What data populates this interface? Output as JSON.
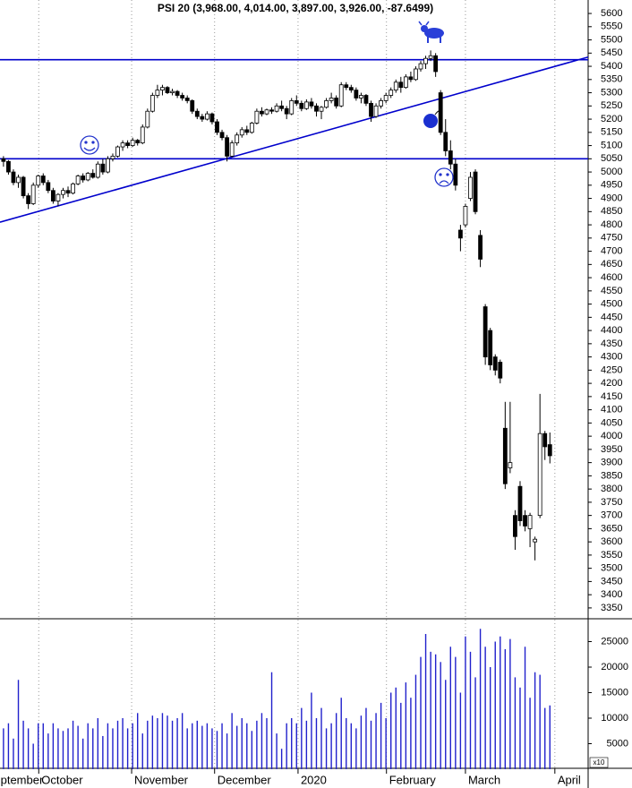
{
  "chart_data": {
    "type": "candlestick",
    "title": "PSI 20 (3,968.00, 4,014.00, 3,897.00, 3,926.00, -87.6499)",
    "open": [
      5050,
      5040,
      5000,
      4960,
      4980,
      4910,
      4880,
      4950,
      4985,
      4960,
      4930,
      4890,
      4915,
      4930,
      4920,
      4955,
      4985,
      4970,
      4995,
      4980,
      5030,
      5000,
      5050,
      5060,
      5095,
      5110,
      5100,
      5120,
      5110,
      5170,
      5230,
      5290,
      5310,
      5320,
      5300,
      5305,
      5290,
      5280,
      5270,
      5230,
      5210,
      5200,
      5220,
      5190,
      5150,
      5130,
      5060,
      5110,
      5140,
      5160,
      5150,
      5185,
      5230,
      5220,
      5235,
      5230,
      5250,
      5240,
      5220,
      5270,
      5260,
      5240,
      5265,
      5250,
      5230,
      5245,
      5270,
      5280,
      5250,
      5330,
      5320,
      5310,
      5280,
      5290,
      5260,
      5210,
      5250,
      5270,
      5290,
      5310,
      5340,
      5320,
      5360,
      5350,
      5390,
      5410,
      5430,
      5440,
      5300,
      5150,
      5080,
      5030,
      4780,
      4800,
      4900,
      5000,
      4760,
      4490,
      4400,
      4300,
      4280,
      4030,
      3880,
      3700,
      3810,
      3700,
      3650,
      3600,
      3700,
      4010,
      3968
    ],
    "high": [
      5060,
      5045,
      5010,
      4990,
      4985,
      4920,
      4960,
      4990,
      4995,
      4970,
      4940,
      4920,
      4940,
      4945,
      4960,
      4990,
      4995,
      5000,
      5010,
      5040,
      5050,
      5060,
      5070,
      5100,
      5120,
      5120,
      5130,
      5125,
      5180,
      5240,
      5300,
      5330,
      5330,
      5325,
      5315,
      5310,
      5300,
      5290,
      5275,
      5240,
      5220,
      5230,
      5225,
      5200,
      5160,
      5140,
      5120,
      5150,
      5170,
      5175,
      5190,
      5240,
      5245,
      5240,
      5245,
      5260,
      5270,
      5250,
      5280,
      5290,
      5270,
      5275,
      5280,
      5260,
      5250,
      5280,
      5300,
      5290,
      5340,
      5340,
      5330,
      5320,
      5300,
      5295,
      5270,
      5260,
      5280,
      5300,
      5320,
      5350,
      5360,
      5370,
      5380,
      5400,
      5420,
      5440,
      5460,
      5450,
      5310,
      5200,
      5120,
      5050,
      4800,
      4880,
      5000,
      5010,
      4780,
      4500,
      4410,
      4310,
      4290,
      4130,
      4130,
      3720,
      3830,
      3720,
      3710,
      3620,
      4160,
      4020,
      4014
    ],
    "low": [
      5020,
      4990,
      4950,
      4940,
      4900,
      4860,
      4875,
      4940,
      4950,
      4920,
      4880,
      4870,
      4900,
      4905,
      4915,
      4950,
      4960,
      4965,
      4975,
      4975,
      4990,
      4995,
      5040,
      5055,
      5080,
      5090,
      5095,
      5100,
      5105,
      5165,
      5225,
      5280,
      5290,
      5295,
      5290,
      5280,
      5270,
      5260,
      5220,
      5200,
      5190,
      5195,
      5180,
      5140,
      5120,
      5040,
      5055,
      5100,
      5130,
      5140,
      5145,
      5180,
      5210,
      5215,
      5220,
      5225,
      5230,
      5200,
      5215,
      5250,
      5230,
      5235,
      5240,
      5210,
      5200,
      5240,
      5260,
      5240,
      5245,
      5310,
      5300,
      5270,
      5260,
      5250,
      5190,
      5205,
      5240,
      5260,
      5280,
      5300,
      5300,
      5315,
      5340,
      5345,
      5380,
      5390,
      5420,
      5360,
      5140,
      5060,
      5010,
      4930,
      4700,
      4790,
      4890,
      4840,
      4640,
      4270,
      4250,
      4230,
      4200,
      3800,
      3860,
      3570,
      3660,
      3640,
      3580,
      3530,
      3690,
      3910,
      3897
    ],
    "close": [
      5040,
      5000,
      4960,
      4980,
      4910,
      4880,
      4950,
      4985,
      4960,
      4930,
      4890,
      4915,
      4930,
      4920,
      4955,
      4985,
      4970,
      4995,
      4980,
      5030,
      5000,
      5050,
      5060,
      5095,
      5110,
      5100,
      5120,
      5110,
      5170,
      5230,
      5290,
      5310,
      5320,
      5300,
      5305,
      5290,
      5280,
      5270,
      5230,
      5210,
      5200,
      5220,
      5190,
      5150,
      5130,
      5060,
      5110,
      5140,
      5160,
      5150,
      5185,
      5230,
      5220,
      5235,
      5230,
      5250,
      5240,
      5220,
      5270,
      5260,
      5240,
      5265,
      5250,
      5230,
      5245,
      5270,
      5280,
      5250,
      5330,
      5320,
      5310,
      5280,
      5290,
      5260,
      5210,
      5250,
      5270,
      5290,
      5310,
      5340,
      5320,
      5360,
      5350,
      5390,
      5410,
      5430,
      5440,
      5380,
      5150,
      5080,
      5030,
      4950,
      4750,
      4870,
      4980,
      4850,
      4670,
      4300,
      4270,
      4250,
      4220,
      3820,
      3900,
      3620,
      3680,
      3660,
      3700,
      3610,
      4010,
      3960,
      3926
    ],
    "up_color": "#ffffff",
    "down_color": "#000000",
    "xlim": [
      -0.7,
      117.7
    ],
    "xticks": [
      {
        "value": -4,
        "label": "September"
      },
      {
        "value": 7.1,
        "label": "October"
      },
      {
        "value": 25.8,
        "label": "November"
      },
      {
        "value": 42.5,
        "label": "December"
      },
      {
        "value": 59.3,
        "label": "2020"
      },
      {
        "value": 77.1,
        "label": "February"
      },
      {
        "value": 93,
        "label": "March"
      },
      {
        "value": 111,
        "label": "April"
      }
    ],
    "grid": true,
    "ylim": [
      3309,
      5651
    ],
    "yticks": [
      3350,
      3400,
      3450,
      3500,
      3550,
      3600,
      3650,
      3700,
      3750,
      3800,
      3850,
      3900,
      3950,
      4000,
      4050,
      4100,
      4150,
      4200,
      4250,
      4300,
      4350,
      4400,
      4450,
      4500,
      4550,
      4600,
      4650,
      4700,
      4750,
      4800,
      4850,
      4900,
      4950,
      5000,
      5050,
      5100,
      5150,
      5200,
      5250,
      5300,
      5350,
      5400,
      5450,
      5500,
      5550,
      5600
    ],
    "lines": [
      {
        "y": 5425,
        "color": "#0000cc"
      },
      {
        "y": 5050,
        "color": "#0000cc"
      },
      {
        "x": [
          -0.7,
          117.7
        ],
        "y": [
          4810,
          5435
        ],
        "color": "#0000cc"
      }
    ],
    "volume": {
      "color": "#2020cc",
      "label": "x10",
      "ylim": [
        0,
        29300
      ],
      "yticks": [
        5000,
        10000,
        15000,
        20000,
        25000
      ],
      "values": [
        8000,
        9000,
        6000,
        17500,
        9500,
        8000,
        5000,
        9000,
        9000,
        7000,
        9000,
        8000,
        7500,
        8000,
        9500,
        8500,
        6000,
        9000,
        8000,
        10000,
        6500,
        9000,
        8000,
        9500,
        10000,
        8000,
        9000,
        11000,
        7000,
        9500,
        10500,
        10000,
        11000,
        10500,
        9500,
        10000,
        11000,
        8000,
        9000,
        9500,
        8500,
        9000,
        8000,
        7500,
        9000,
        7000,
        11000,
        8500,
        10000,
        9000,
        7500,
        9500,
        11000,
        10000,
        19000,
        7000,
        4000,
        9000,
        10000,
        9000,
        12000,
        9500,
        15000,
        10000,
        12000,
        8000,
        9000,
        11000,
        14000,
        10000,
        9000,
        8000,
        10500,
        12000,
        9500,
        11000,
        13000,
        10000,
        15000,
        16000,
        13000,
        17000,
        14000,
        18500,
        22000,
        26500,
        23000,
        22500,
        21000,
        17500,
        24000,
        22000,
        15000,
        26000,
        23000,
        18000,
        27500,
        24000,
        20000,
        25000,
        26000,
        23500,
        25500,
        18000,
        16000,
        24000,
        14000,
        19000,
        18500,
        12000,
        12500
      ]
    }
  }
}
